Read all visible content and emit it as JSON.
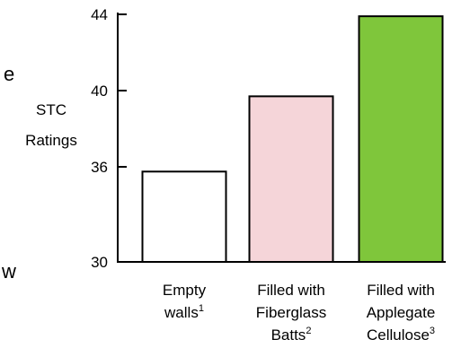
{
  "chart_data": {
    "type": "bar",
    "title": "",
    "xlabel": "",
    "ylabel_lines": [
      "STC",
      "Ratings"
    ],
    "y_ticks": [
      30,
      36,
      40,
      44
    ],
    "tick_labels": [
      "30",
      "36",
      "40",
      "44"
    ],
    "categories": [
      {
        "lines": [
          "Empty",
          "walls"
        ],
        "footnote": "1"
      },
      {
        "lines": [
          "Filled with",
          "Fiberglass",
          "Batts"
        ],
        "footnote": "2"
      },
      {
        "lines": [
          "Filled with",
          "Applegate",
          "Cellulose"
        ],
        "footnote": "3"
      }
    ],
    "values": [
      35.7,
      39.7,
      43.9
    ],
    "colors": [
      "#ffffff",
      "#f5d5d9",
      "#7fc63b"
    ],
    "axis_scale": "piecewise (break between 30 and 36)",
    "grid": false,
    "legend": "none"
  },
  "edge_fragments": [
    "e",
    "w"
  ]
}
